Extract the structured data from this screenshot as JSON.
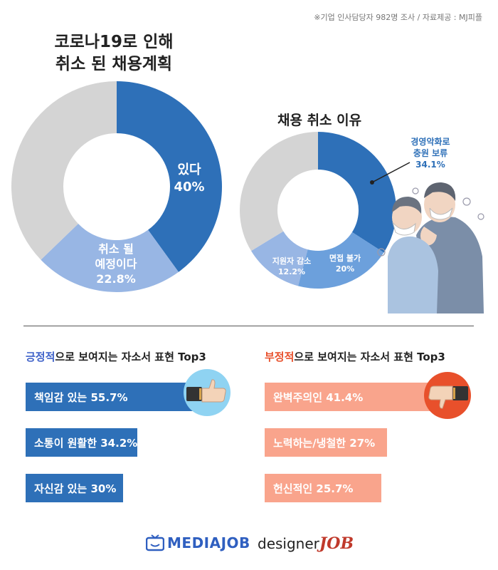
{
  "source_note": "※기업 인사담당자 982명 조사 / 자료제공 : MJ피플",
  "colors": {
    "blue_dark": "#2e70b8",
    "blue_light": "#98b6e4",
    "blue_mid": "#6ca0dc",
    "grey": "#d4d4d4",
    "peach": "#f9a48c",
    "accent_blue": "#3f62c9",
    "accent_red": "#e8502b"
  },
  "chart_data": [
    {
      "type": "pie",
      "title_line1": "코로나19로 인해",
      "title_line2": "취소 된 채용계획",
      "slices": [
        {
          "label_lines": [
            "있다",
            "40%"
          ],
          "value": 40,
          "color": "#2e70b8"
        },
        {
          "label_lines": [
            "취소 될",
            "예정이다",
            "22.8%"
          ],
          "value": 22.8,
          "color": "#98b6e4"
        },
        {
          "label_lines": [],
          "value": 37.2,
          "color": "#d4d4d4"
        }
      ]
    },
    {
      "type": "pie",
      "title": "채용 취소 이유",
      "slices": [
        {
          "label_lines": [
            "경영악화로",
            "충원 보류",
            "34.1%"
          ],
          "value": 34.1,
          "color": "#2e70b8"
        },
        {
          "label_lines": [
            "면접 불가",
            "20%"
          ],
          "value": 20,
          "color": "#6ca0dc"
        },
        {
          "label_lines": [
            "지원자 감소",
            "12.2%"
          ],
          "value": 12.2,
          "color": "#98b6e4"
        },
        {
          "label_lines": [],
          "value": 33.7,
          "color": "#d4d4d4"
        }
      ]
    },
    {
      "type": "bar",
      "title_accent": "긍정적",
      "title_rest": "으로 보여지는 자소서 표현 Top3",
      "categories": [
        "책임감 있는",
        "소통이 원활한",
        "자신감 있는"
      ],
      "values": [
        55.7,
        34.2,
        30
      ],
      "labels": [
        "책임감 있는 55.7%",
        "소통이 원활한 34.2%",
        "자신감 있는 30%"
      ]
    },
    {
      "type": "bar",
      "title_accent": "부정적",
      "title_rest": "으로 보여지는 자소서 표현 Top3",
      "categories": [
        "완벽주의인",
        "노력하는/냉철한",
        "헌신적인"
      ],
      "values": [
        41.4,
        27,
        25.7
      ],
      "labels": [
        "완벽주의인 41.4%",
        "노력하는/냉철한 27%",
        "헌신적인 25.7%"
      ]
    }
  ],
  "icons": {
    "thumbs_up": "thumbs-up-icon",
    "thumbs_down": "thumbs-down-icon",
    "people": "masked-people-illustration"
  },
  "logos": {
    "media": "MEDIAJOB",
    "designer_text": "designer",
    "designer_job": "JOB"
  }
}
